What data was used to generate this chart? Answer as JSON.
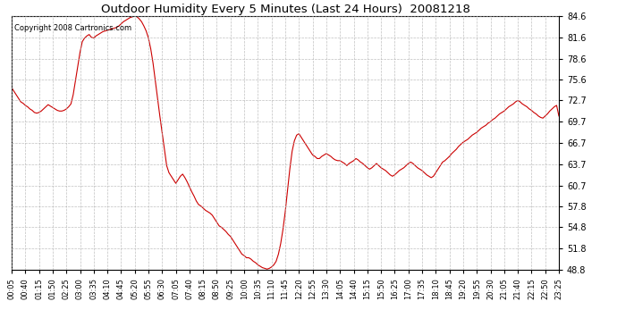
{
  "title": "Outdoor Humidity Every 5 Minutes (Last 24 Hours)  20081218",
  "copyright": "Copyright 2008 Cartronics.com",
  "line_color": "#cc0000",
  "bg_color": "#ffffff",
  "grid_color": "#b0b0b0",
  "ylim": [
    48.8,
    84.6
  ],
  "yticks": [
    48.8,
    51.8,
    54.8,
    57.8,
    60.7,
    63.7,
    66.7,
    69.7,
    72.7,
    75.6,
    78.6,
    81.6,
    84.6
  ],
  "xtick_labels": [
    "00:05",
    "00:40",
    "01:15",
    "01:50",
    "02:25",
    "03:00",
    "03:35",
    "04:10",
    "04:45",
    "05:20",
    "05:55",
    "06:30",
    "07:05",
    "07:40",
    "08:15",
    "08:50",
    "09:25",
    "10:00",
    "10:35",
    "11:10",
    "11:45",
    "12:20",
    "12:55",
    "13:30",
    "14:05",
    "14:40",
    "15:15",
    "15:50",
    "16:25",
    "17:00",
    "17:35",
    "18:10",
    "18:45",
    "19:20",
    "19:55",
    "20:30",
    "21:05",
    "21:40",
    "22:15",
    "22:50",
    "23:25"
  ],
  "humidity": [
    74.5,
    74.0,
    73.5,
    73.0,
    72.5,
    72.3,
    72.0,
    71.8,
    71.5,
    71.3,
    71.0,
    70.9,
    71.0,
    71.2,
    71.5,
    71.8,
    72.1,
    71.9,
    71.7,
    71.5,
    71.3,
    71.2,
    71.2,
    71.3,
    71.5,
    71.8,
    72.2,
    73.5,
    75.5,
    77.5,
    79.5,
    81.0,
    81.5,
    81.8,
    82.0,
    81.6,
    81.5,
    81.8,
    82.0,
    82.2,
    82.4,
    82.5,
    82.6,
    82.7,
    82.8,
    82.9,
    83.0,
    83.2,
    83.5,
    83.8,
    84.0,
    84.2,
    84.4,
    84.5,
    84.6,
    84.5,
    84.2,
    83.8,
    83.2,
    82.5,
    81.5,
    80.0,
    78.0,
    75.5,
    73.0,
    70.5,
    68.2,
    65.8,
    63.5,
    62.5,
    62.0,
    61.5,
    61.0,
    61.5,
    62.0,
    62.3,
    61.8,
    61.2,
    60.5,
    59.8,
    59.2,
    58.5,
    58.0,
    57.8,
    57.5,
    57.2,
    57.0,
    56.8,
    56.5,
    56.0,
    55.5,
    55.0,
    54.8,
    54.5,
    54.2,
    53.8,
    53.5,
    53.0,
    52.5,
    52.0,
    51.5,
    51.0,
    50.8,
    50.5,
    50.5,
    50.3,
    50.0,
    49.8,
    49.5,
    49.3,
    49.1,
    49.0,
    48.9,
    49.0,
    49.2,
    49.5,
    50.0,
    51.0,
    52.5,
    54.5,
    57.0,
    60.0,
    63.0,
    65.5,
    67.0,
    67.8,
    68.0,
    67.5,
    67.0,
    66.5,
    66.0,
    65.5,
    65.0,
    64.8,
    64.5,
    64.5,
    64.8,
    65.0,
    65.2,
    65.0,
    64.8,
    64.5,
    64.3,
    64.2,
    64.2,
    64.0,
    63.8,
    63.5,
    63.8,
    64.0,
    64.2,
    64.5,
    64.3,
    64.0,
    63.8,
    63.5,
    63.2,
    63.0,
    63.2,
    63.5,
    63.8,
    63.5,
    63.2,
    63.0,
    62.8,
    62.5,
    62.2,
    62.0,
    62.2,
    62.5,
    62.8,
    63.0,
    63.2,
    63.5,
    63.8,
    64.0,
    63.8,
    63.5,
    63.2,
    63.0,
    62.8,
    62.5,
    62.2,
    62.0,
    61.8,
    62.0,
    62.5,
    63.0,
    63.5,
    64.0,
    64.2,
    64.5,
    64.8,
    65.2,
    65.5,
    65.8,
    66.2,
    66.5,
    66.8,
    67.0,
    67.2,
    67.5,
    67.8,
    68.0,
    68.2,
    68.5,
    68.8,
    69.0,
    69.2,
    69.5,
    69.7,
    70.0,
    70.2,
    70.5,
    70.8,
    71.0,
    71.2,
    71.5,
    71.8,
    72.0,
    72.2,
    72.5,
    72.7,
    72.5,
    72.2,
    72.0,
    71.8,
    71.5,
    71.3,
    71.0,
    70.8,
    70.5,
    70.3,
    70.2,
    70.5,
    70.8,
    71.2,
    71.5,
    71.8,
    72.0,
    70.5
  ]
}
